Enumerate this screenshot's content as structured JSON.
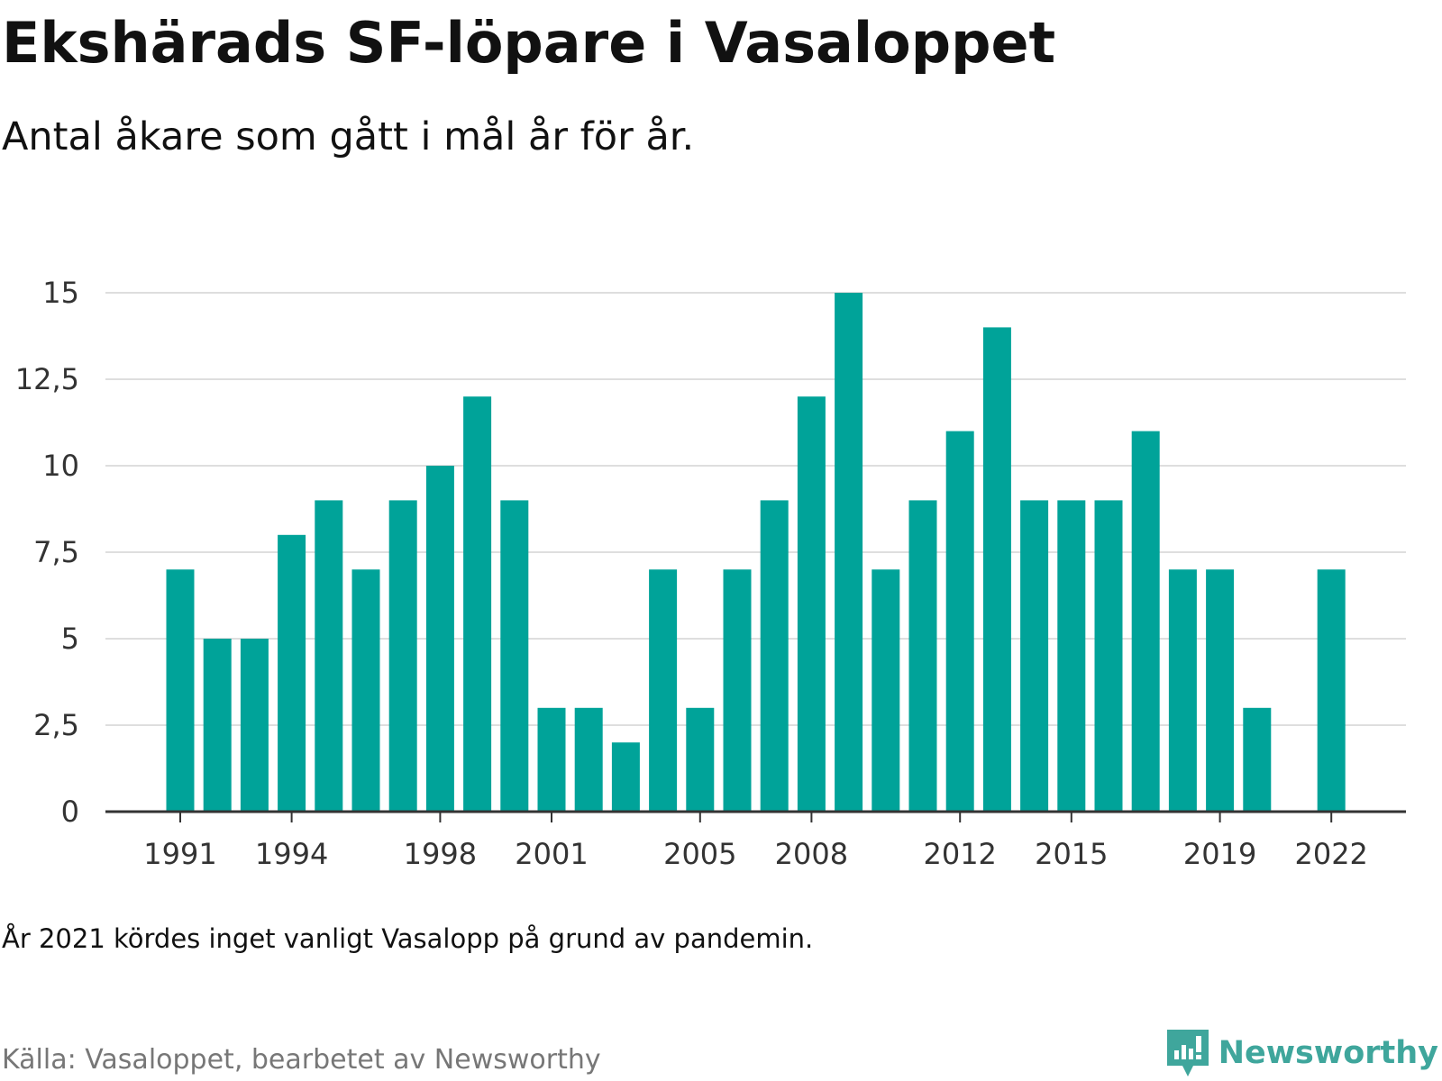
{
  "header": {
    "title": "Ekshärads SF-löpare i Vasaloppet",
    "subtitle": "Antal åkare som gått i mål år för år."
  },
  "footer": {
    "note": "År 2021 kördes inget vanligt Vasalopp på grund av pandemin.",
    "source": "Källa: Vasaloppet, bearbetet av Newsworthy",
    "brand": "Newsworthy",
    "brand_logo_icon": "newsworthy-logo-icon"
  },
  "colors": {
    "bar": "#00a399",
    "grid": "#dedede",
    "axis": "#333333",
    "tick_text": "#333333",
    "brand": "#3fa69c"
  },
  "chart_data": {
    "type": "bar",
    "title": "Ekshärads SF-löpare i Vasaloppet",
    "subtitle": "Antal åkare som gått i mål år för år.",
    "xlabel": "",
    "ylabel": "",
    "ylim": [
      0,
      15
    ],
    "yticks": [
      0,
      2.5,
      5,
      7.5,
      10,
      12.5,
      15
    ],
    "ytick_labels": [
      "0",
      "2,5",
      "5",
      "7,5",
      "10",
      "12,5",
      "15"
    ],
    "xtick_labels": [
      "1991",
      "1994",
      "1998",
      "2001",
      "2005",
      "2008",
      "2012",
      "2015",
      "2019",
      "2022"
    ],
    "grid": true,
    "legend": "none",
    "categories": [
      1991,
      1992,
      1993,
      1994,
      1995,
      1996,
      1997,
      1998,
      1999,
      2000,
      2001,
      2002,
      2003,
      2004,
      2005,
      2006,
      2007,
      2008,
      2009,
      2010,
      2011,
      2012,
      2013,
      2014,
      2015,
      2016,
      2017,
      2018,
      2019,
      2020,
      2021,
      2022
    ],
    "values": [
      7,
      5,
      5,
      8,
      9,
      7,
      9,
      10,
      12,
      9,
      3,
      3,
      2,
      7,
      3,
      7,
      9,
      12,
      15,
      7,
      9,
      11,
      14,
      9,
      9,
      9,
      11,
      7,
      7,
      3,
      null,
      7
    ]
  }
}
